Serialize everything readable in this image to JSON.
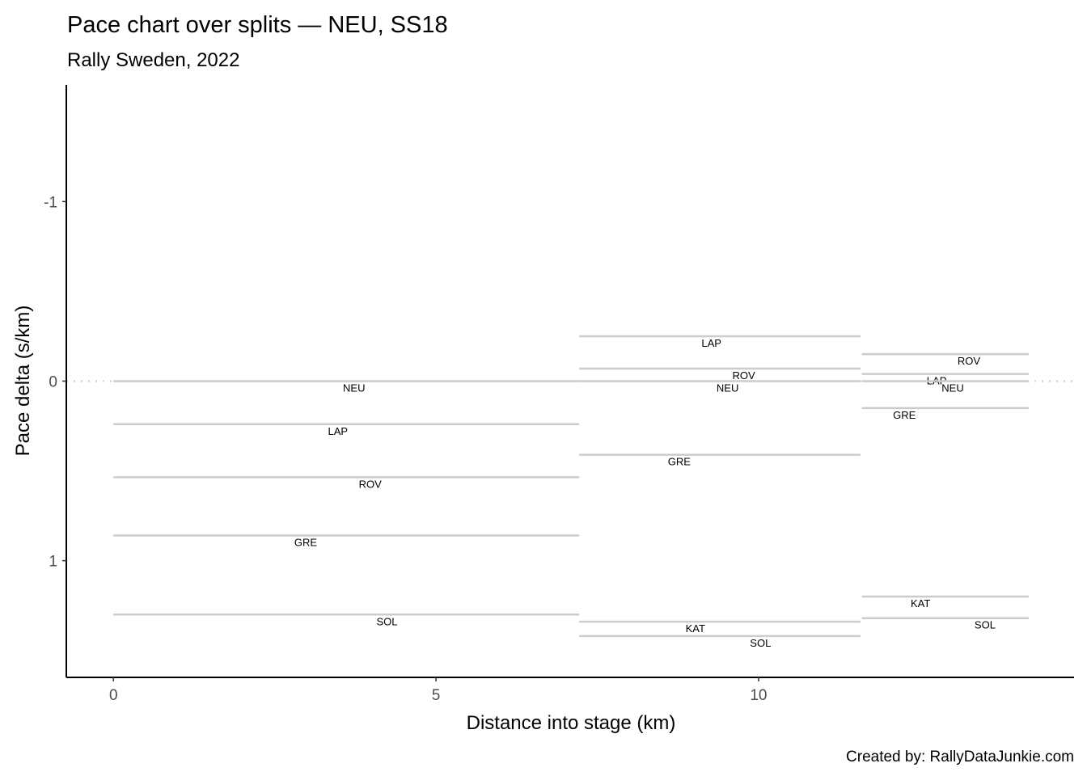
{
  "chart_data": {
    "type": "line",
    "title": "Pace chart over splits — NEU, SS18",
    "subtitle": "Rally Sweden, 2022",
    "xlabel": "Distance into stage (km)",
    "ylabel": "Pace delta (s/km)",
    "caption": "Created by: RallyDataJunkie.com",
    "xlim": [
      -0.73,
      14.89
    ],
    "ylim": [
      -1.65,
      1.65
    ],
    "y_reversed": true,
    "x_ticks": [
      0,
      5,
      10
    ],
    "y_ticks": [
      -1,
      0,
      1
    ],
    "reference_line": 0,
    "grid": false,
    "splits": [
      {
        "start": 0,
        "end": 7.22,
        "entries": [
          {
            "driver": "NEU",
            "value": 0,
            "label_x": 3.73
          },
          {
            "driver": "LAP",
            "value": 0.24,
            "label_x": 3.48
          },
          {
            "driver": "ROV",
            "value": 0.535,
            "label_x": 3.98
          },
          {
            "driver": "GRE",
            "value": 0.86,
            "label_x": 2.98
          },
          {
            "driver": "SOL",
            "value": 1.3,
            "label_x": 4.24
          }
        ]
      },
      {
        "start": 7.22,
        "end": 11.58,
        "entries": [
          {
            "driver": "LAP",
            "value": -0.25,
            "label_x": 9.27
          },
          {
            "driver": "ROV",
            "value": -0.07,
            "label_x": 9.77
          },
          {
            "driver": "NEU",
            "value": 0,
            "label_x": 9.52
          },
          {
            "driver": "GRE",
            "value": 0.41,
            "label_x": 8.77
          },
          {
            "driver": "KAT",
            "value": 1.34,
            "label_x": 9.02
          },
          {
            "driver": "SOL",
            "value": 1.42,
            "label_x": 10.03
          }
        ]
      },
      {
        "start": 11.6,
        "end": 14.19,
        "entries": [
          {
            "driver": "ROV",
            "value": -0.15,
            "label_x": 13.26
          },
          {
            "driver": "LAP",
            "value": -0.04,
            "label_x": 12.76
          },
          {
            "driver": "NEU",
            "value": 0,
            "label_x": 13.01
          },
          {
            "driver": "GRE",
            "value": 0.15,
            "label_x": 12.26
          },
          {
            "driver": "KAT",
            "value": 1.2,
            "label_x": 12.51
          },
          {
            "driver": "SOL",
            "value": 1.32,
            "label_x": 13.51
          }
        ]
      }
    ]
  }
}
